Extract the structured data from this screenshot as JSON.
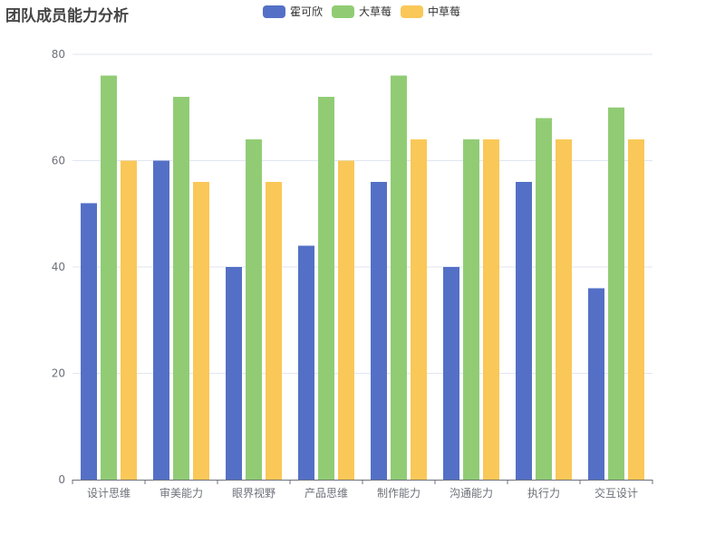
{
  "chart_data": {
    "type": "bar",
    "title": "团队成员能力分析",
    "categories": [
      "设计思维",
      "审美能力",
      "眼界视野",
      "产品思维",
      "制作能力",
      "沟通能力",
      "执行力",
      "交互设计"
    ],
    "series": [
      {
        "name": "霍可欣",
        "color": "#5470c6",
        "values": [
          52,
          60,
          40,
          44,
          56,
          40,
          56,
          36
        ]
      },
      {
        "name": "大草莓",
        "color": "#91cc75",
        "values": [
          76,
          72,
          64,
          72,
          76,
          64,
          68,
          70
        ]
      },
      {
        "name": "中草莓",
        "color": "#fac858",
        "values": [
          60,
          56,
          56,
          60,
          64,
          64,
          64,
          64
        ]
      }
    ],
    "yticks": [
      0,
      20,
      40,
      60,
      80
    ],
    "ylim": [
      0,
      80
    ],
    "grid": true,
    "legend_position": "top-center"
  }
}
